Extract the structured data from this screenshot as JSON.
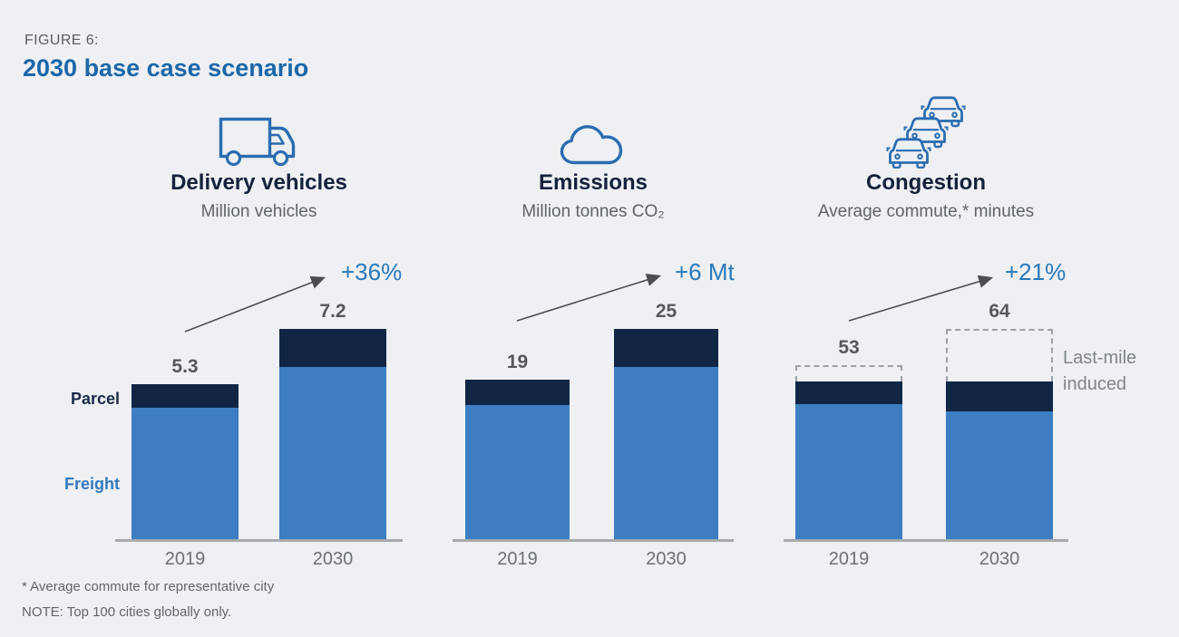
{
  "header": {
    "figure_label": "FIGURE 6:",
    "title": "2030 base case scenario"
  },
  "legend": {
    "parcel_label": "Parcel",
    "freight_label": "Freight",
    "last_mile_label": "Last-mile induced"
  },
  "footnotes": [
    "* Average commute for representative city",
    "NOTE: Top 100 cities globally only."
  ],
  "colors": {
    "freight": "#3D7DC2",
    "parcel": "#112644",
    "induced_border": "#9BA1A7",
    "accent": "#2A79BB",
    "title_blue": "#1C67A8",
    "icon_blue": "#2B6CB0",
    "axis": "#A8ABAE",
    "background": "#EEF0F3"
  },
  "chart_data": [
    {
      "type": "bar",
      "id": "delivery-vehicles",
      "title": "Delivery vehicles",
      "subtitle": "Million vehicles",
      "icon": "truck-icon",
      "categories": [
        "2019",
        "2030"
      ],
      "totals": [
        5.3,
        7.2
      ],
      "series": [
        {
          "name": "Freight",
          "key": "freight",
          "values": [
            4.5,
            5.9
          ]
        },
        {
          "name": "Parcel",
          "key": "parcel",
          "values": [
            0.8,
            1.3
          ]
        }
      ],
      "annotation": "+36%",
      "stacked": true,
      "grid": false,
      "legend_position": "left"
    },
    {
      "type": "bar",
      "id": "emissions",
      "title": "Emissions",
      "subtitle": "Million tonnes CO₂",
      "icon": "cloud-icon",
      "categories": [
        "2019",
        "2030"
      ],
      "totals": [
        19,
        25
      ],
      "series": [
        {
          "name": "Freight",
          "key": "freight",
          "values": [
            16,
            20.5
          ]
        },
        {
          "name": "Parcel",
          "key": "parcel",
          "values": [
            3,
            4.5
          ]
        }
      ],
      "annotation": "+6 Mt",
      "stacked": true,
      "grid": false
    },
    {
      "type": "bar",
      "id": "congestion",
      "title": "Congestion",
      "subtitle": "Average commute,* minutes",
      "icon": "traffic-jam-icon",
      "categories": [
        "2019",
        "2030"
      ],
      "totals": [
        53,
        64
      ],
      "series": [
        {
          "name": "Freight",
          "key": "freight",
          "values": [
            41,
            39
          ]
        },
        {
          "name": "Parcel",
          "key": "parcel",
          "values": [
            7,
            9
          ]
        },
        {
          "name": "Last-mile induced",
          "key": "induced",
          "values": [
            5,
            16
          ],
          "style": "dashed"
        }
      ],
      "annotation": "+21%",
      "stacked": true,
      "grid": false
    }
  ]
}
